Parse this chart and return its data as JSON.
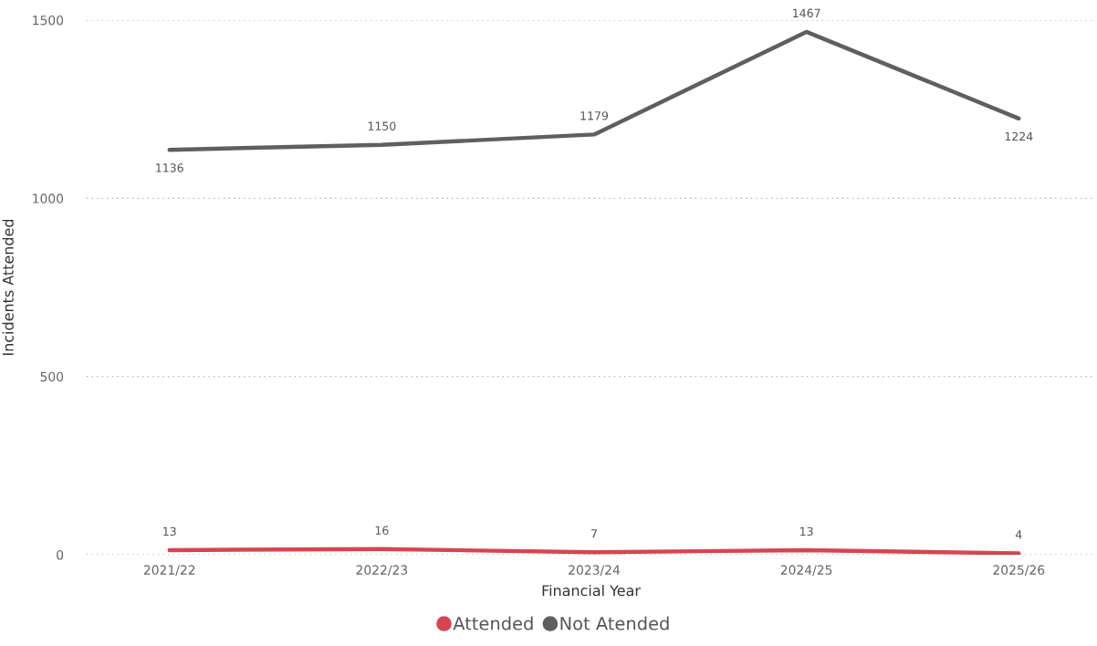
{
  "chart_data": {
    "type": "line",
    "xlabel": "Financial Year",
    "ylabel": "Incidents Attended",
    "categories": [
      "2021/22",
      "2022/23",
      "2023/24",
      "2024/25",
      "2025/26"
    ],
    "series": [
      {
        "name": "Attended",
        "color": "#d64550",
        "values": [
          13,
          16,
          7,
          13,
          4
        ]
      },
      {
        "name": "Not Atended",
        "color": "#5f5f5f",
        "values": [
          1136,
          1150,
          1179,
          1467,
          1224
        ]
      }
    ],
    "ylim": [
      0,
      1500
    ],
    "yticks": [
      0,
      500,
      1000,
      1500
    ],
    "grid": "y",
    "legend": "bottom",
    "data_labels": true,
    "line_style": "solid"
  }
}
